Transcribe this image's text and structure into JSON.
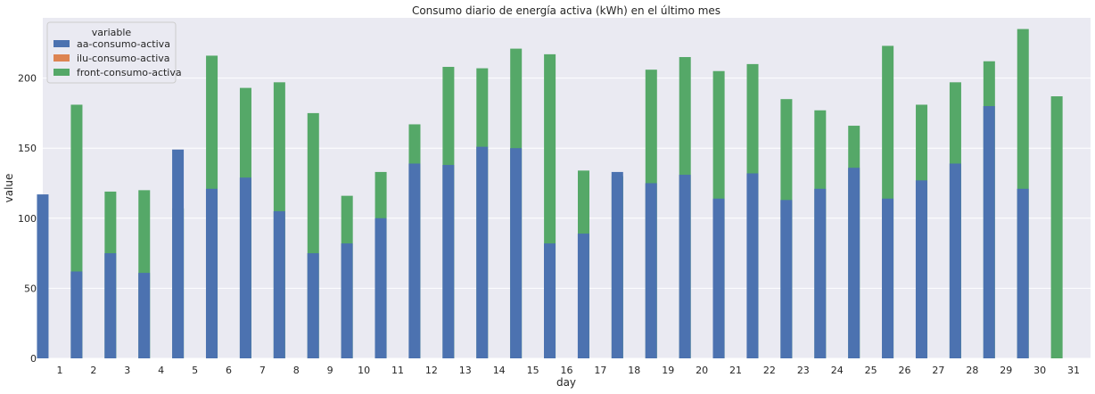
{
  "chart_data": {
    "type": "bar",
    "title": "Consumo diario de energía activa (kWh) en el último mes",
    "xlabel": "day",
    "ylabel": "value",
    "ylim": [
      0,
      243
    ],
    "yticks": [
      0,
      50,
      100,
      150,
      200
    ],
    "grid": true,
    "legend_position": "top-left",
    "legend_title": "variable",
    "categories": [
      "1",
      "2",
      "3",
      "4",
      "5",
      "6",
      "7",
      "8",
      "9",
      "10",
      "11",
      "12",
      "13",
      "14",
      "15",
      "16",
      "17",
      "18",
      "19",
      "20",
      "21",
      "22",
      "23",
      "24",
      "25",
      "26",
      "27",
      "28",
      "29",
      "30",
      "31"
    ],
    "series": [
      {
        "name": "aa-consumo-activa",
        "color": "#4c72b0",
        "values": [
          117,
          62,
          75,
          61,
          149,
          121,
          129,
          105,
          75,
          82,
          100,
          139,
          138,
          151,
          150,
          82,
          89,
          133,
          125,
          131,
          114,
          132,
          113,
          121,
          136,
          114,
          127,
          139,
          180,
          121,
          0
        ]
      },
      {
        "name": "ilu-consumo-activa",
        "color": "#dd8452",
        "values": [
          0,
          0,
          0,
          0,
          0,
          0,
          0,
          0,
          0,
          0,
          0,
          0,
          0,
          0,
          0,
          0,
          0,
          0,
          0,
          0,
          0,
          0,
          0,
          0,
          0,
          0,
          0,
          0,
          0,
          0,
          0
        ]
      },
      {
        "name": "front-consumo-activa",
        "color": "#55a868",
        "values": [
          181,
          119,
          120,
          107,
          216,
          193,
          197,
          175,
          116,
          133,
          167,
          208,
          207,
          221,
          217,
          134,
          130,
          206,
          215,
          205,
          210,
          185,
          177,
          166,
          223,
          181,
          197,
          212,
          235,
          187,
          0
        ]
      }
    ]
  }
}
